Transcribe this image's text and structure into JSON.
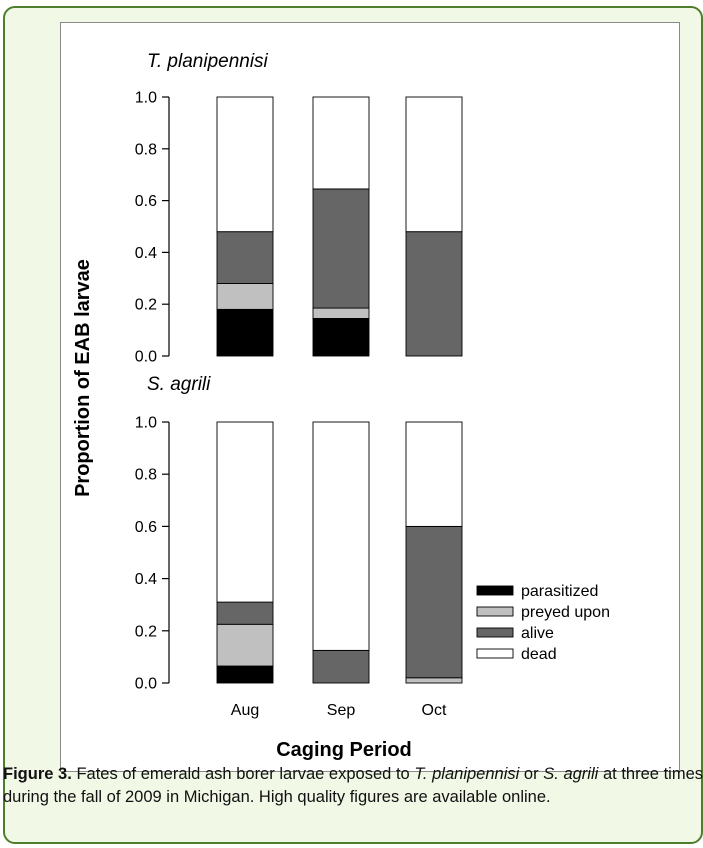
{
  "colors": {
    "parasitized": "#000000",
    "preyed_upon": "#c0c0c0",
    "alive": "#666666",
    "dead": "#ffffff",
    "frame_border": "#4e7d2c",
    "frame_fill": "#f1f8e6"
  },
  "chart_data": {
    "type": "bar",
    "stacked": true,
    "categories": [
      "Aug",
      "Sep",
      "Oct"
    ],
    "xlabel": "Caging Period",
    "ylabel": "Proportion of EAB larvae",
    "ylim": [
      0,
      1
    ],
    "yticks": [
      "0.0",
      "0.2",
      "0.4",
      "0.6",
      "0.8",
      "1.0"
    ],
    "legend": {
      "placement": "bottom-right of lower panel",
      "entries": [
        "parasitized",
        "preyed upon",
        "alive",
        "dead"
      ]
    },
    "panels": [
      {
        "title": "T. planipennisi",
        "series": [
          {
            "name": "parasitized",
            "values": [
              0.18,
              0.145,
              0.0
            ]
          },
          {
            "name": "preyed upon",
            "values": [
              0.1,
              0.04,
              0.0
            ]
          },
          {
            "name": "alive",
            "values": [
              0.2,
              0.46,
              0.48
            ]
          },
          {
            "name": "dead",
            "values": [
              0.52,
              0.355,
              0.52
            ]
          }
        ]
      },
      {
        "title": "S. agrili",
        "series": [
          {
            "name": "parasitized",
            "values": [
              0.065,
              0.0,
              0.0
            ]
          },
          {
            "name": "preyed upon",
            "values": [
              0.16,
              0.0,
              0.02
            ]
          },
          {
            "name": "alive",
            "values": [
              0.085,
              0.125,
              0.58
            ]
          },
          {
            "name": "dead",
            "values": [
              0.69,
              0.875,
              0.4
            ]
          }
        ]
      }
    ]
  },
  "caption": {
    "label": "Figure 3.",
    "part1": "Fates of emerald ash borer larvae exposed to",
    "italic1": "T. planipennisi",
    "part2": "or",
    "italic2": "S. agrili",
    "part3": "at three times during the fall of 2009 in Michigan. High quality figures are available online."
  }
}
